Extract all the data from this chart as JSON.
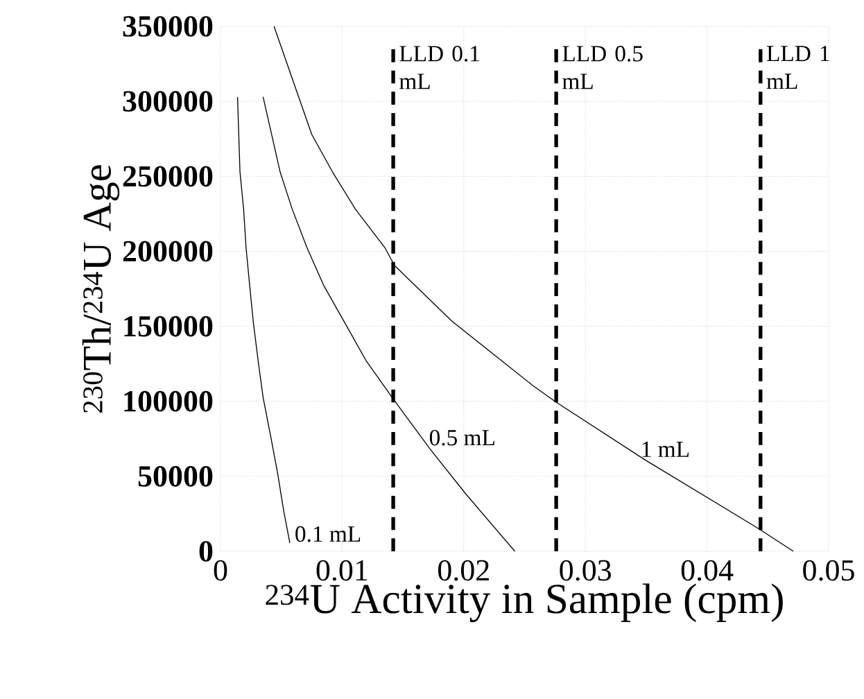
{
  "chart_data": {
    "type": "line",
    "xlabel": "$^{234}$U Activity in Sample (cpm)",
    "ylabel": "$^{230}$Th/$^{234}$U Age",
    "xlim": [
      0,
      0.05
    ],
    "ylim": [
      0,
      350000
    ],
    "xticks": [
      0,
      0.01,
      0.02,
      0.03,
      0.04,
      0.05
    ],
    "yticks": [
      0,
      50000,
      100000,
      150000,
      200000,
      250000,
      300000,
      350000
    ],
    "grid": true,
    "series": [
      {
        "name": "0.1 mL",
        "color": "#000000",
        "x": [
          0.0014,
          0.0015,
          0.0016,
          0.0019,
          0.0021,
          0.0024,
          0.0027,
          0.0031,
          0.0035,
          0.0041,
          0.0047,
          0.0052,
          0.0057
        ],
        "values": [
          303000,
          278000,
          253000,
          228000,
          202600,
          177000,
          152600,
          126700,
          102700,
          77700,
          51800,
          26800,
          5500
        ]
      },
      {
        "name": "0.5 mL",
        "color": "#000000",
        "x": [
          0.0035,
          0.0042,
          0.0049,
          0.0059,
          0.0071,
          0.0085,
          0.0102,
          0.012,
          0.0141,
          0.0172,
          0.0202,
          0.0242
        ],
        "values": [
          303000,
          278000,
          253000,
          228000,
          202600,
          177000,
          152600,
          126700,
          102700,
          68500,
          37900,
          0
        ]
      },
      {
        "name": "1 mL",
        "color": "#000000",
        "x": [
          0.0044,
          0.0075,
          0.0092,
          0.0111,
          0.0135,
          0.0143,
          0.019,
          0.0256,
          0.0276,
          0.0349,
          0.0443,
          0.0471
        ],
        "values": [
          350000,
          278000,
          253000,
          228000,
          202600,
          190600,
          153600,
          111000,
          99400,
          61000,
          14800,
          0
        ]
      }
    ],
    "ref_lines": [
      {
        "axis": "x",
        "value": 0.0142,
        "label": "LLD 0.1 mL",
        "color": "#000000",
        "line_style": "dashed"
      },
      {
        "axis": "x",
        "value": 0.0276,
        "label": "LLD 0.5 mL",
        "color": "#000000",
        "line_style": "dashed"
      },
      {
        "axis": "x",
        "value": 0.0444,
        "label": "LLD 1 mL",
        "color": "#000000",
        "line_style": "dashed"
      }
    ]
  }
}
